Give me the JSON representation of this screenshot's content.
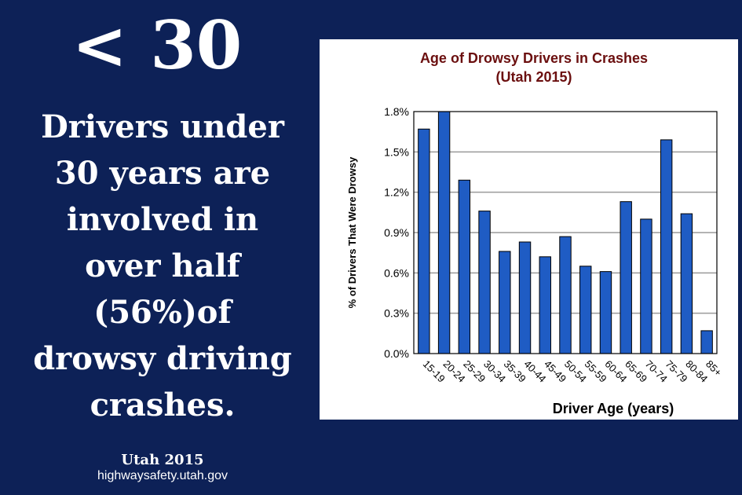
{
  "headline": "< 30",
  "body_lines": [
    "Drivers under",
    "30 years are",
    "involved in",
    "over half",
    "(56%)of",
    "drowsy driving",
    "crashes."
  ],
  "footer": {
    "year": "Utah 2015",
    "url": "highwaysafety.utah.gov"
  },
  "colors": {
    "background": "#0d2157",
    "bar": "#1f5cc4",
    "title": "#6b0f0f"
  },
  "chart_data": {
    "type": "bar",
    "title": "Age of Drowsy Drivers in Crashes",
    "subtitle": "(Utah 2015)",
    "xlabel": "Driver Age (years)",
    "ylabel": "% of Drivers That Were Drowsy",
    "categories": [
      "15-19",
      "20-24",
      "25-29",
      "30-34",
      "35-39",
      "40-44",
      "45-49",
      "50-54",
      "55-59",
      "60-64",
      "65-69",
      "70-74",
      "75-79",
      "80-84",
      "85+"
    ],
    "values": [
      1.67,
      1.8,
      1.29,
      1.06,
      0.76,
      0.83,
      0.72,
      0.87,
      0.65,
      0.61,
      1.13,
      1.0,
      1.59,
      1.04,
      0.17
    ],
    "yticks": [
      "0.0%",
      "0.3%",
      "0.6%",
      "0.9%",
      "1.2%",
      "1.5%",
      "1.8%"
    ],
    "ylim": [
      0,
      1.8
    ],
    "grid": true
  }
}
